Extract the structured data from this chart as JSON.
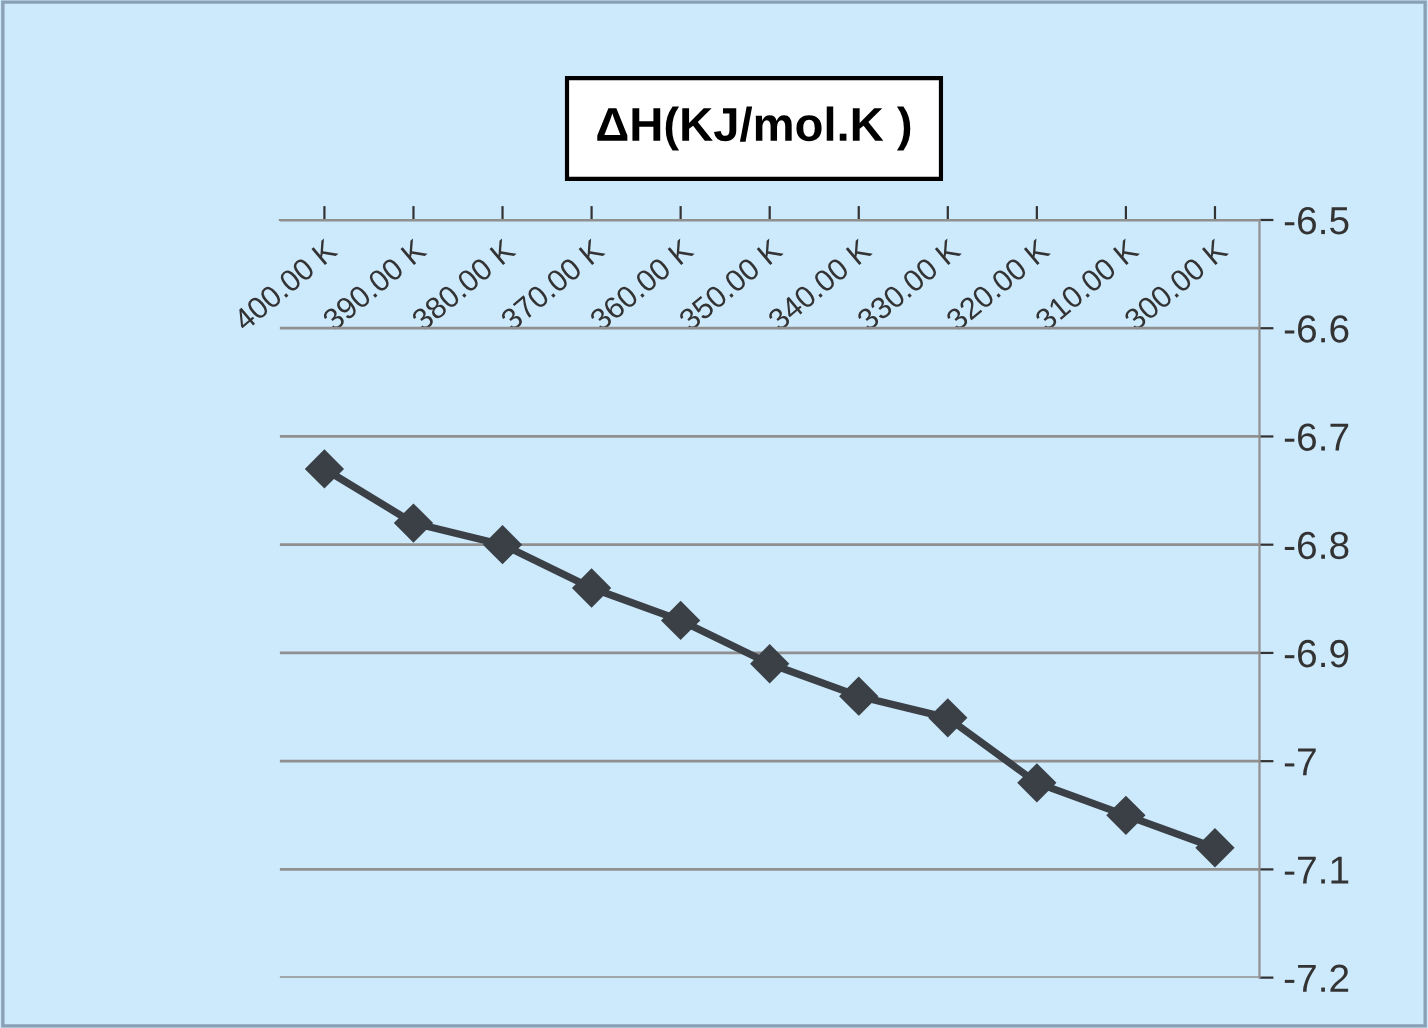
{
  "chart_data": {
    "type": "line",
    "title": "ΔH(KJ/mol.K )",
    "categories": [
      "400.00 K",
      "390.00 K",
      "380.00 K",
      "370.00 K",
      "360.00 K",
      "350.00 K",
      "340.00 K",
      "330.00 K",
      "320.00 K",
      "310.00 K",
      "300.00 K"
    ],
    "series": [
      {
        "color": "#3a4046",
        "values": [
          -6.73,
          -6.78,
          -6.8,
          -6.84,
          -6.87,
          -6.91,
          -6.94,
          -6.96,
          -7.02,
          -7.05,
          -7.08
        ]
      }
    ],
    "ylim": [
      -7.2,
      -6.5
    ],
    "yticks": [
      -7.2,
      -7.1,
      -7.0,
      -6.9,
      -6.8,
      -6.7,
      -6.6,
      -6.5
    ],
    "grid": "y",
    "marker": "diamond",
    "line_style": "solid",
    "legend": false
  }
}
